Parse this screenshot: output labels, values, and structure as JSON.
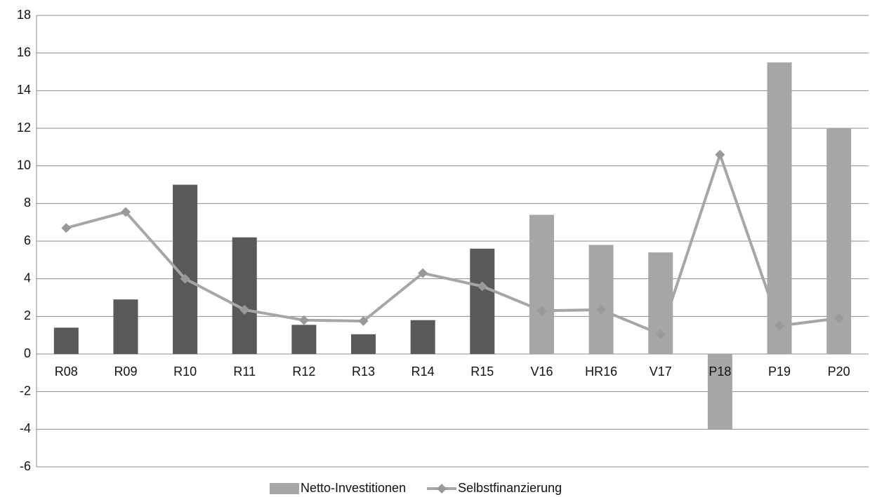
{
  "chart_data": {
    "type": "combo",
    "categories": [
      "R08",
      "R09",
      "R10",
      "R11",
      "R12",
      "R13",
      "R14",
      "R15",
      "V16",
      "HR16",
      "V17",
      "P18",
      "P19",
      "P20"
    ],
    "series": [
      {
        "name": "Netto-Investitionen",
        "type": "bar",
        "color": "#a6a6a6",
        "colors": [
          "#595959",
          "#595959",
          "#595959",
          "#595959",
          "#595959",
          "#595959",
          "#595959",
          "#595959",
          "#a6a6a6",
          "#a6a6a6",
          "#a6a6a6",
          "#a6a6a6",
          "#a6a6a6",
          "#a6a6a6"
        ],
        "values": [
          1.4,
          2.9,
          9.0,
          6.2,
          1.55,
          1.05,
          1.8,
          5.6,
          7.4,
          5.8,
          5.4,
          -4.0,
          15.5,
          12.0
        ]
      },
      {
        "name": "Selbstfinanzierung",
        "type": "line",
        "color": "#a6a6a6",
        "values": [
          6.7,
          7.55,
          4.0,
          2.35,
          1.8,
          1.75,
          4.3,
          3.6,
          2.3,
          2.35,
          1.05,
          10.6,
          1.5,
          1.9
        ]
      }
    ],
    "ylim": [
      -6,
      18
    ],
    "yticks": [
      -6,
      -4,
      -2,
      0,
      2,
      4,
      6,
      8,
      10,
      12,
      14,
      16,
      18
    ],
    "grid": true
  }
}
